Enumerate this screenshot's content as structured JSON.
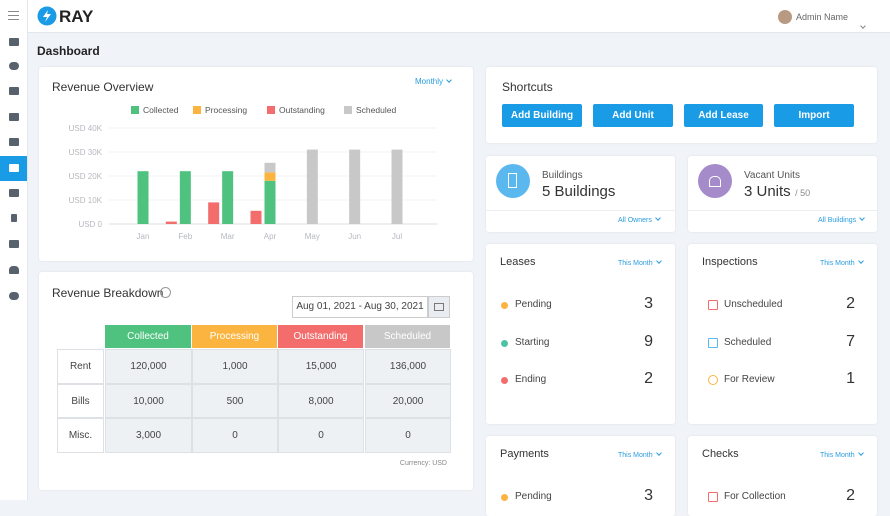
{
  "header": {
    "logo": "RAY",
    "user": "Admin Name"
  },
  "page_title": "Dashboard",
  "overview_period": "Monthly",
  "chart_data": {
    "type": "bar",
    "title": "Revenue Overview",
    "categories": [
      "Jan",
      "Feb",
      "Mar",
      "Apr",
      "May",
      "Jun",
      "Jul"
    ],
    "series": [
      {
        "name": "Collected",
        "color": "#4ec27e",
        "stacked": true,
        "values": [
          22000,
          22000,
          22000,
          18000,
          null,
          null,
          null
        ]
      },
      {
        "name": "Processing",
        "color": "#fbb440",
        "stacked": true,
        "values": [
          null,
          null,
          null,
          3500,
          null,
          null,
          null
        ]
      },
      {
        "name": "Outstanding",
        "color": "#f46d6d",
        "stacked": false,
        "values": [
          null,
          1000,
          9000,
          5500,
          null,
          null,
          null
        ]
      },
      {
        "name": "Scheduled",
        "color": "#c8c8c8",
        "stacked": true,
        "values": [
          null,
          null,
          null,
          4000,
          31000,
          31000,
          31000
        ]
      }
    ],
    "ylim": [
      0,
      40000
    ],
    "yticks": [
      {
        "value": 0,
        "label": "USD 0"
      },
      {
        "value": 10000,
        "label": "USD 10K"
      },
      {
        "value": 20000,
        "label": "USD 20K"
      },
      {
        "value": 30000,
        "label": "USD 30K"
      },
      {
        "value": 40000,
        "label": "USD 40K"
      }
    ],
    "grid": true
  },
  "revenue_breakdown": {
    "title": "Revenue Breakdown",
    "date_range": "Aug 01, 2021 - Aug 30, 2021",
    "columns": [
      "Collected",
      "Processing",
      "Outstanding",
      "Scheduled"
    ],
    "rows": [
      [
        "Rent",
        "120,000",
        "1,000",
        "15,000",
        "136,000"
      ],
      [
        "Bills",
        "10,000",
        "500",
        "8,000",
        "20,000"
      ],
      [
        "Misc.",
        "3,000",
        "0",
        "0",
        "0"
      ]
    ],
    "note": "Currency: USD"
  },
  "shortcuts": {
    "title": "Shortcuts",
    "buttons": [
      "Add Building",
      "Add Unit",
      "Add Lease",
      "Import"
    ]
  },
  "buildings": {
    "label": "Buildings",
    "value": "5 Buildings",
    "filter": "All Owners"
  },
  "vacant_units": {
    "label": "Vacant Units",
    "value": "3 Units",
    "total": "/ 50",
    "filter": "All Buildings"
  },
  "leases": {
    "title": "Leases",
    "filter": "This Month",
    "items": [
      {
        "label": "Pending",
        "count": 3
      },
      {
        "label": "Starting",
        "count": 9
      },
      {
        "label": "Ending",
        "count": 2
      }
    ]
  },
  "inspections": {
    "title": "Inspections",
    "filter": "This Month",
    "items": [
      {
        "label": "Unscheduled",
        "count": 2
      },
      {
        "label": "Scheduled",
        "count": 7
      },
      {
        "label": "For Review",
        "count": 1
      }
    ]
  },
  "payments": {
    "title": "Payments",
    "filter": "This Month",
    "items": [
      {
        "label": "Pending",
        "count": 3
      }
    ]
  },
  "checks": {
    "title": "Checks",
    "filter": "This Month",
    "items": [
      {
        "label": "For Collection",
        "count": 2
      }
    ]
  }
}
